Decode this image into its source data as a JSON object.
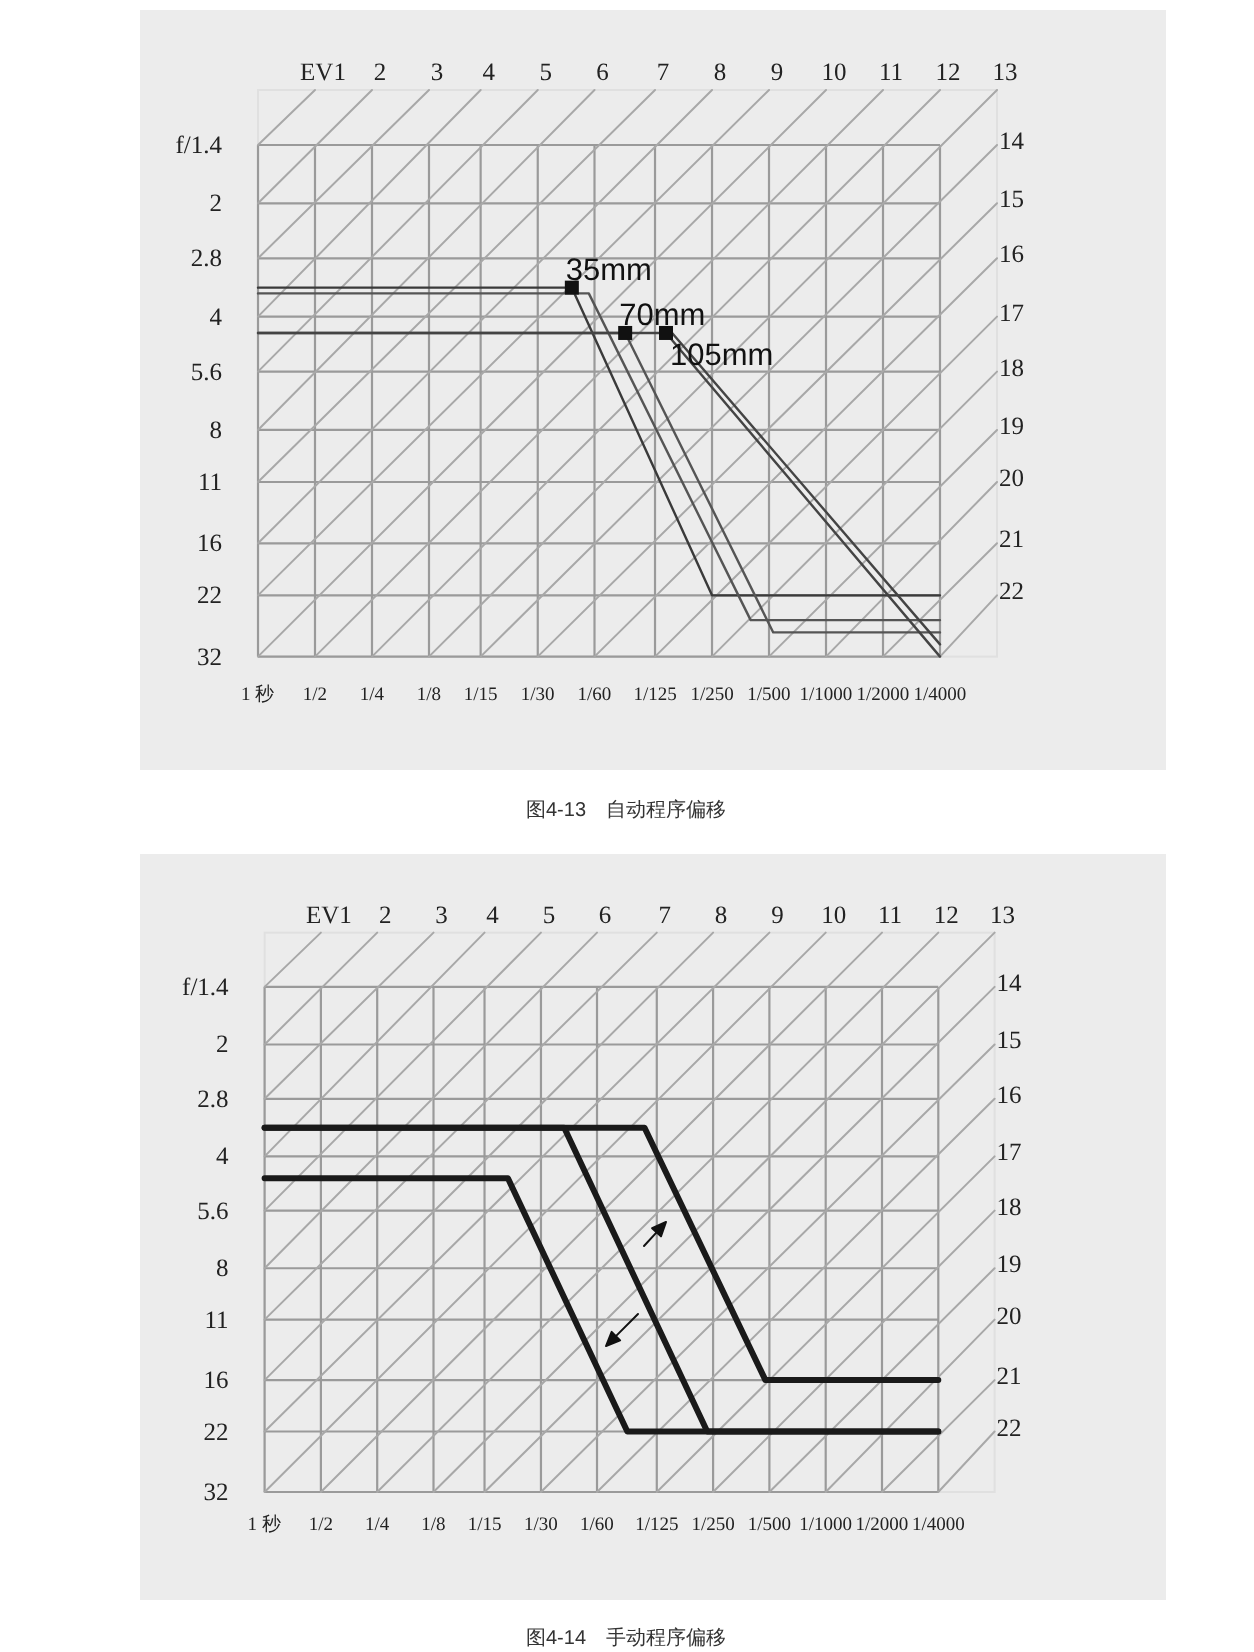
{
  "chart_data": [
    {
      "type": "line",
      "log": "xy",
      "xlim": [
        1,
        0.000125
      ],
      "ylim": [
        32,
        1
      ],
      "grid": true,
      "line_style": "solid",
      "xticks": [
        {
          "value": 1,
          "label": "1 秒"
        },
        {
          "value": 0.5,
          "label": "1/2"
        },
        {
          "value": 0.25,
          "label": "1/4"
        },
        {
          "value": 0.125,
          "label": "1/8"
        },
        {
          "value": 0.0667,
          "label": "1/15"
        },
        {
          "value": 0.0333,
          "label": "1/30"
        },
        {
          "value": 0.0167,
          "label": "1/60"
        },
        {
          "value": 0.008,
          "label": "1/125"
        },
        {
          "value": 0.004,
          "label": "1/250"
        },
        {
          "value": 0.002,
          "label": "1/500"
        },
        {
          "value": 0.001,
          "label": "1/1000"
        },
        {
          "value": 0.0005,
          "label": "1/2000"
        },
        {
          "value": 0.00025,
          "label": "1/4000"
        }
      ],
      "yticks": [
        {
          "value": 1.4,
          "label": "f/1.4"
        },
        2,
        2.8,
        4,
        5.6,
        8,
        11,
        16,
        22,
        32
      ],
      "series": [
        {
          "name": "EV1",
          "color": "#a8a8a8",
          "x": [
            1,
            0.5
          ],
          "values": [
            1.4,
            1
          ]
        },
        {
          "name": "2",
          "color": "#a8a8a8",
          "x": [
            1,
            0.25
          ],
          "values": [
            2,
            1
          ]
        },
        {
          "name": "3",
          "color": "#a8a8a8",
          "x": [
            1,
            0.125
          ],
          "values": [
            2.8,
            1
          ]
        },
        {
          "name": "4",
          "color": "#a8a8a8",
          "x": [
            1,
            0.0667
          ],
          "values": [
            4,
            1
          ]
        },
        {
          "name": "5",
          "color": "#a8a8a8",
          "x": [
            1,
            0.0333
          ],
          "values": [
            5.6,
            1
          ]
        },
        {
          "name": "6",
          "color": "#a8a8a8",
          "x": [
            1,
            0.0167
          ],
          "values": [
            8,
            1
          ]
        },
        {
          "name": "7",
          "color": "#a8a8a8",
          "x": [
            1,
            0.008
          ],
          "values": [
            11,
            1
          ]
        },
        {
          "name": "8",
          "color": "#a8a8a8",
          "x": [
            1,
            0.004
          ],
          "values": [
            16,
            1
          ]
        },
        {
          "name": "9",
          "color": "#a8a8a8",
          "x": [
            1,
            0.002
          ],
          "values": [
            22,
            1
          ]
        },
        {
          "name": "10",
          "color": "#a8a8a8",
          "x": [
            1,
            0.001
          ],
          "values": [
            32,
            1
          ]
        },
        {
          "name": "11",
          "color": "#a8a8a8",
          "x": [
            0.5,
            0.0005
          ],
          "values": [
            32,
            1
          ]
        },
        {
          "name": "12",
          "color": "#a8a8a8",
          "x": [
            0.25,
            0.00025
          ],
          "values": [
            32,
            1
          ]
        },
        {
          "name": "13",
          "color": "#a8a8a8",
          "x": [
            0.125,
            0.000125
          ],
          "values": [
            32,
            1
          ]
        },
        {
          "name": "14",
          "color": "#a8a8a8",
          "x": [
            0.0667,
            0.000125
          ],
          "values": [
            32,
            1.4
          ]
        },
        {
          "name": "15",
          "color": "#a8a8a8",
          "x": [
            0.0333,
            0.000125
          ],
          "values": [
            32,
            2
          ]
        },
        {
          "name": "16",
          "color": "#a8a8a8",
          "x": [
            0.0167,
            0.000125
          ],
          "values": [
            32,
            2.8
          ]
        },
        {
          "name": "17",
          "color": "#a8a8a8",
          "x": [
            0.008,
            0.000125
          ],
          "values": [
            32,
            4
          ]
        },
        {
          "name": "18",
          "color": "#a8a8a8",
          "x": [
            0.004,
            0.000125
          ],
          "values": [
            32,
            5.6
          ]
        },
        {
          "name": "19",
          "color": "#a8a8a8",
          "x": [
            0.002,
            0.000125
          ],
          "values": [
            32,
            8
          ]
        },
        {
          "name": "20",
          "color": "#a8a8a8",
          "x": [
            0.001,
            0.000125
          ],
          "values": [
            32,
            11
          ]
        },
        {
          "name": "21",
          "color": "#a8a8a8",
          "x": [
            0.0005,
            0.000125
          ],
          "values": [
            32,
            16
          ]
        },
        {
          "name": "22",
          "color": "#a8a8a8",
          "x": [
            0.00025,
            0.000125
          ],
          "values": [
            32,
            22
          ]
        },
        {
          "color": "#3a3a3a",
          "x": [
            1,
            0.022,
            0.004,
            0.00025
          ],
          "values": [
            3.35,
            3.35,
            22,
            22
          ]
        },
        {
          "color": "#555555",
          "x": [
            1,
            0.0179,
            0.0025,
            0.00025
          ],
          "values": [
            3.47,
            3.47,
            25.6,
            25.6
          ]
        },
        {
          "color": "#555555",
          "x": [
            1,
            0.0115,
            0.0019,
            0.00025
          ],
          "values": [
            4.42,
            4.42,
            27.6,
            27.6
          ]
        },
        {
          "color": "#444444",
          "x": [
            1,
            0.007,
            0.00025
          ],
          "values": [
            4.42,
            4.42,
            32
          ]
        },
        {
          "color": "#444444",
          "x": [
            0.0065,
            0.00025
          ],
          "values": [
            4.42,
            29.7
          ]
        },
        {
          "type": "scatter",
          "marker": "square",
          "color": "#111111",
          "x": [
            0.022,
            0.0115,
            0.007
          ],
          "values": [
            3.35,
            4.42,
            4.42
          ]
        }
      ],
      "annotations": [
        {
          "text": "35mm",
          "x": 0.022,
          "y": 3.35
        },
        {
          "text": "70mm",
          "x": 0.0115,
          "y": 4.42
        },
        {
          "text": "105mm",
          "x": 0.007,
          "y": 4.42
        },
        "图4-13　自动程序偏移"
      ]
    },
    {
      "type": "line",
      "log": "xy",
      "xlim": [
        1,
        0.000125
      ],
      "ylim": [
        32,
        1
      ],
      "grid": true,
      "line_style": "solid",
      "xticks": [
        {
          "value": 1,
          "label": "1 秒"
        },
        {
          "value": 0.5,
          "label": "1/2"
        },
        {
          "value": 0.25,
          "label": "1/4"
        },
        {
          "value": 0.125,
          "label": "1/8"
        },
        {
          "value": 0.0667,
          "label": "1/15"
        },
        {
          "value": 0.0333,
          "label": "1/30"
        },
        {
          "value": 0.0167,
          "label": "1/60"
        },
        {
          "value": 0.008,
          "label": "1/125"
        },
        {
          "value": 0.004,
          "label": "1/250"
        },
        {
          "value": 0.002,
          "label": "1/500"
        },
        {
          "value": 0.001,
          "label": "1/1000"
        },
        {
          "value": 0.0005,
          "label": "1/2000"
        },
        {
          "value": 0.00025,
          "label": "1/4000"
        }
      ],
      "yticks": [
        {
          "value": 1.4,
          "label": "f/1.4"
        },
        2,
        2.8,
        4,
        5.6,
        8,
        11,
        16,
        22,
        32
      ],
      "series": [
        {
          "name": "EV1",
          "color": "#a8a8a8",
          "x": [
            1,
            0.5
          ],
          "values": [
            1.4,
            1
          ]
        },
        {
          "name": "2",
          "color": "#a8a8a8",
          "x": [
            1,
            0.25
          ],
          "values": [
            2,
            1
          ]
        },
        {
          "name": "3",
          "color": "#a8a8a8",
          "x": [
            1,
            0.125
          ],
          "values": [
            2.8,
            1
          ]
        },
        {
          "name": "4",
          "color": "#a8a8a8",
          "x": [
            1,
            0.0667
          ],
          "values": [
            4,
            1
          ]
        },
        {
          "name": "5",
          "color": "#a8a8a8",
          "x": [
            1,
            0.0333
          ],
          "values": [
            5.6,
            1
          ]
        },
        {
          "name": "6",
          "color": "#a8a8a8",
          "x": [
            1,
            0.0167
          ],
          "values": [
            8,
            1
          ]
        },
        {
          "name": "7",
          "color": "#a8a8a8",
          "x": [
            1,
            0.008
          ],
          "values": [
            11,
            1
          ]
        },
        {
          "name": "8",
          "color": "#a8a8a8",
          "x": [
            1,
            0.004
          ],
          "values": [
            16,
            1
          ]
        },
        {
          "name": "9",
          "color": "#a8a8a8",
          "x": [
            1,
            0.002
          ],
          "values": [
            22,
            1
          ]
        },
        {
          "name": "10",
          "color": "#a8a8a8",
          "x": [
            1,
            0.001
          ],
          "values": [
            32,
            1
          ]
        },
        {
          "name": "11",
          "color": "#a8a8a8",
          "x": [
            0.5,
            0.0005
          ],
          "values": [
            32,
            1
          ]
        },
        {
          "name": "12",
          "color": "#a8a8a8",
          "x": [
            0.25,
            0.00025
          ],
          "values": [
            32,
            1
          ]
        },
        {
          "name": "13",
          "color": "#a8a8a8",
          "x": [
            0.125,
            0.000125
          ],
          "values": [
            32,
            1
          ]
        },
        {
          "name": "14",
          "color": "#a8a8a8",
          "x": [
            0.0667,
            0.000125
          ],
          "values": [
            32,
            1.4
          ]
        },
        {
          "name": "15",
          "color": "#a8a8a8",
          "x": [
            0.0333,
            0.000125
          ],
          "values": [
            32,
            2
          ]
        },
        {
          "name": "16",
          "color": "#a8a8a8",
          "x": [
            0.0167,
            0.000125
          ],
          "values": [
            32,
            2.8
          ]
        },
        {
          "name": "17",
          "color": "#a8a8a8",
          "x": [
            0.008,
            0.000125
          ],
          "values": [
            32,
            4
          ]
        },
        {
          "name": "18",
          "color": "#a8a8a8",
          "x": [
            0.004,
            0.000125
          ],
          "values": [
            32,
            5.6
          ]
        },
        {
          "name": "19",
          "color": "#a8a8a8",
          "x": [
            0.002,
            0.000125
          ],
          "values": [
            32,
            8
          ]
        },
        {
          "name": "20",
          "color": "#a8a8a8",
          "x": [
            0.001,
            0.000125
          ],
          "values": [
            32,
            11
          ]
        },
        {
          "name": "21",
          "color": "#a8a8a8",
          "x": [
            0.0005,
            0.000125
          ],
          "values": [
            32,
            16
          ]
        },
        {
          "name": "22",
          "color": "#a8a8a8",
          "x": [
            0.00025,
            0.000125
          ],
          "values": [
            32,
            22
          ]
        },
        {
          "color": "#1a1a1a",
          "x": [
            1,
            0.0093,
            0.0021,
            0.00025
          ],
          "values": [
            3.35,
            3.35,
            16,
            16
          ]
        },
        {
          "color": "#1a1a1a",
          "x": [
            1,
            0.025,
            0.0043,
            0.00025
          ],
          "values": [
            3.35,
            3.35,
            22,
            22
          ]
        },
        {
          "color": "#1a1a1a",
          "x": [
            1,
            0.05,
            0.0115,
            0.00025
          ],
          "values": [
            4.58,
            4.58,
            22,
            22
          ]
        }
      ],
      "annotations": [
        "图4-14　手动程序偏移"
      ]
    }
  ]
}
